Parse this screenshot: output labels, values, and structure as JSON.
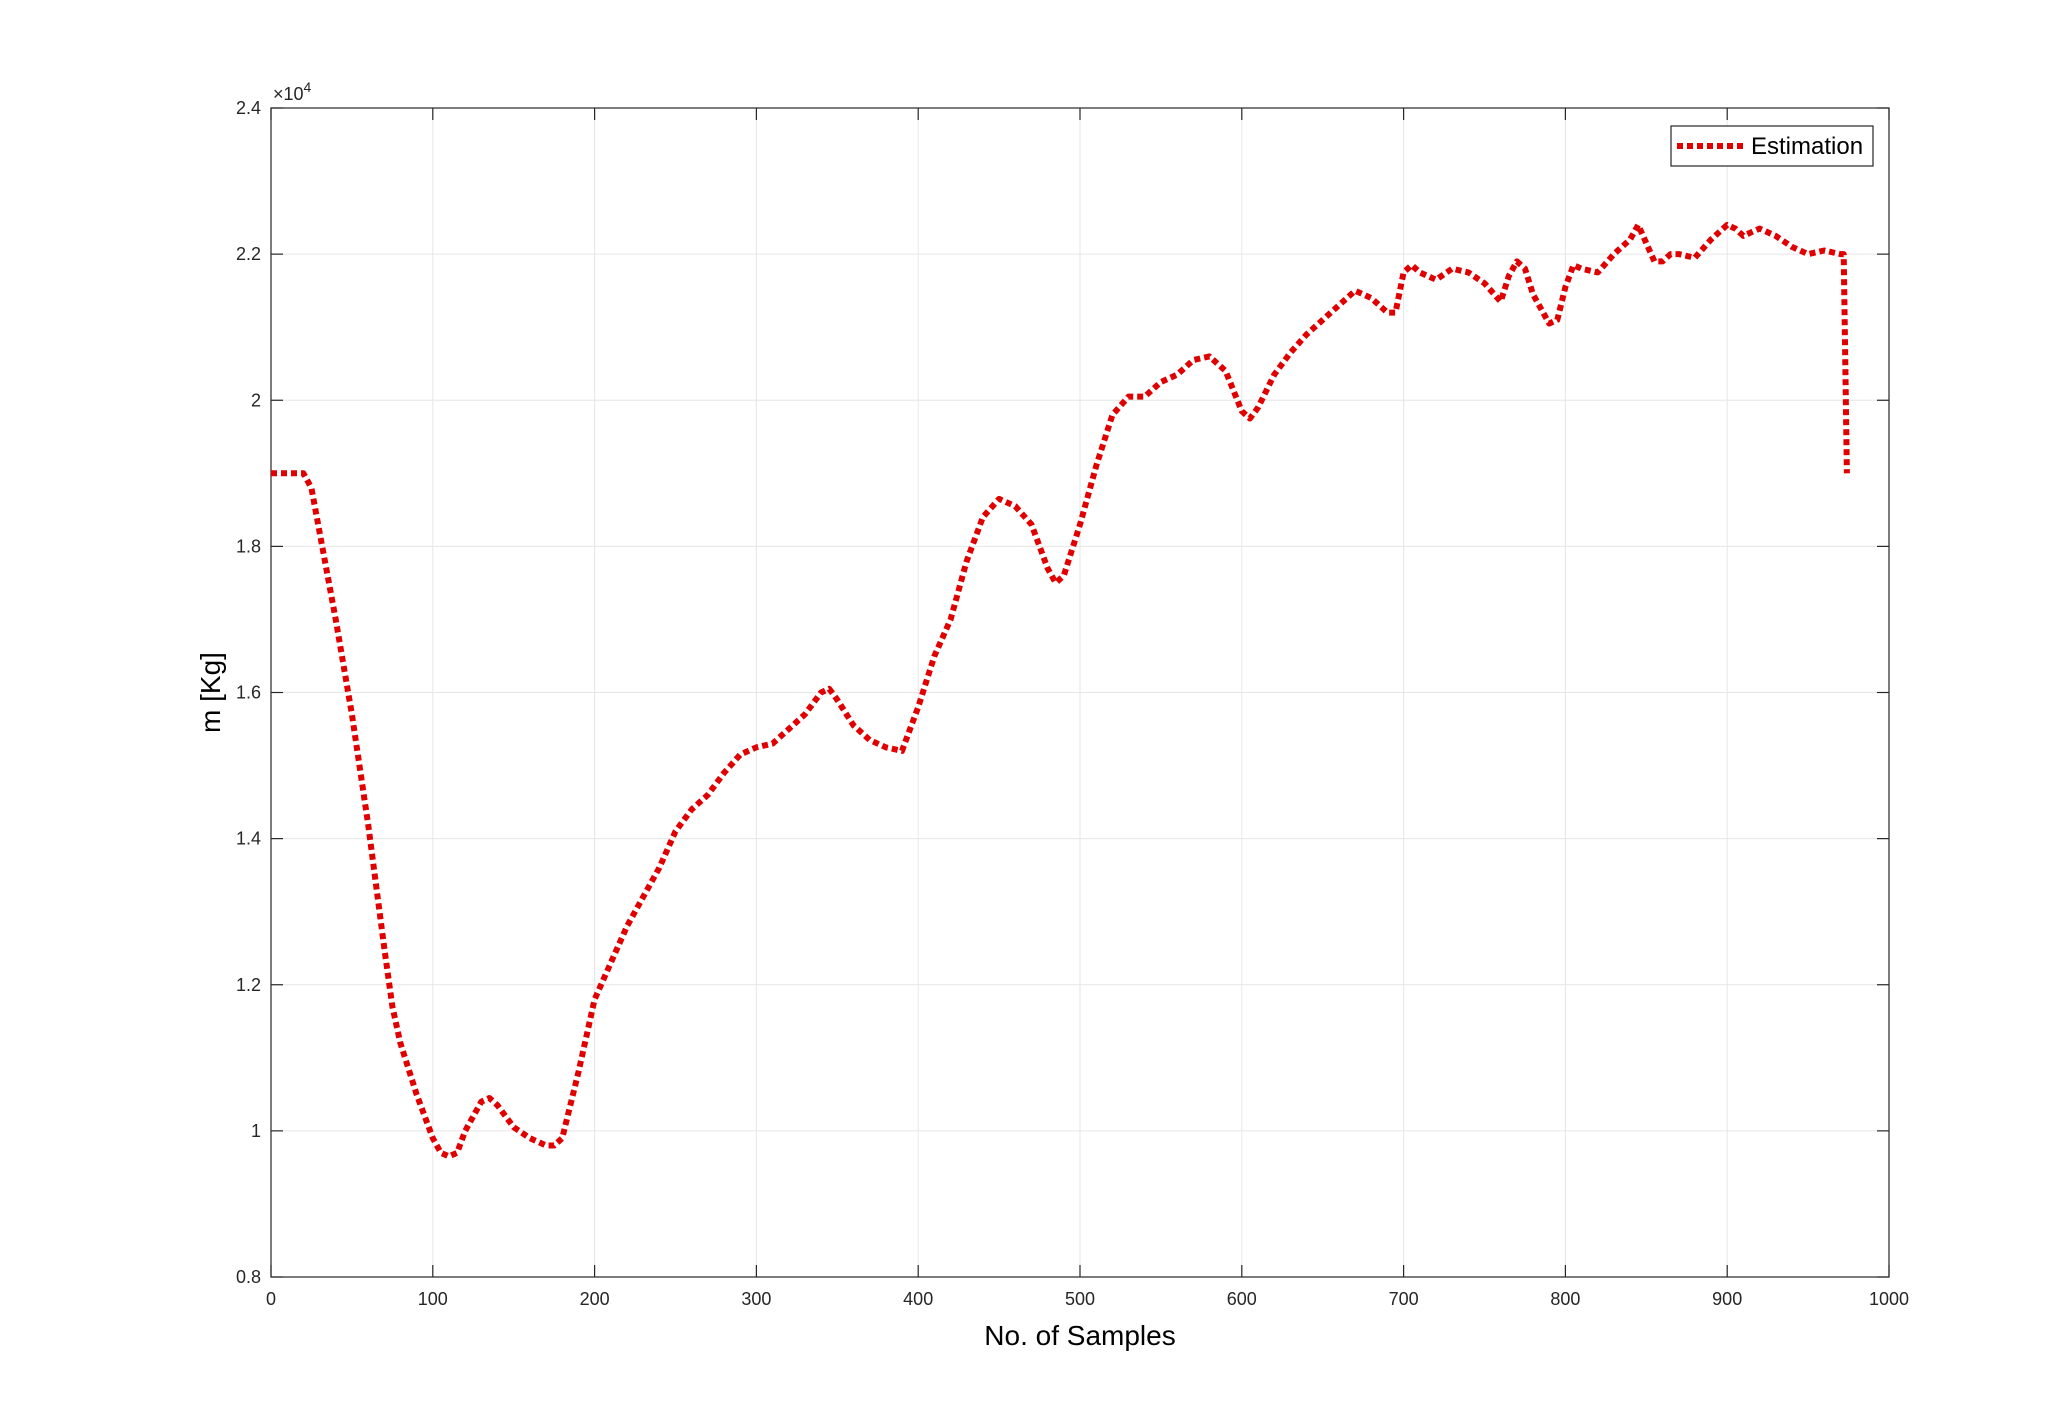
{
  "chart_data": {
    "type": "line",
    "title": "",
    "xlabel": "No. of Samples",
    "ylabel": "m [Kg]",
    "xlim": [
      0,
      1000
    ],
    "ylim": [
      0.8,
      2.4
    ],
    "y_multiplier_label": "×10",
    "y_multiplier_exponent": "4",
    "xticks": [
      "0",
      "100",
      "200",
      "300",
      "400",
      "500",
      "600",
      "700",
      "800",
      "900",
      "1000"
    ],
    "yticks": [
      "0.8",
      "1",
      "1.2",
      "1.4",
      "1.6",
      "1.8",
      "2",
      "2.2",
      "2.4"
    ],
    "grid": true,
    "legend_position": "top-right",
    "colors": {
      "series": "#e00000",
      "grid": "#e6e6e6",
      "axis": "#262626"
    },
    "series": [
      {
        "name": "Estimation",
        "x": [
          0,
          10,
          20,
          25,
          30,
          40,
          50,
          60,
          70,
          75,
          80,
          90,
          100,
          105,
          110,
          115,
          120,
          130,
          135,
          140,
          145,
          150,
          160,
          170,
          175,
          180,
          190,
          200,
          210,
          220,
          230,
          240,
          250,
          260,
          270,
          280,
          290,
          300,
          310,
          320,
          330,
          340,
          345,
          350,
          360,
          370,
          380,
          390,
          400,
          410,
          420,
          430,
          440,
          450,
          460,
          470,
          480,
          485,
          490,
          500,
          510,
          520,
          530,
          540,
          550,
          560,
          570,
          580,
          590,
          600,
          605,
          610,
          620,
          630,
          640,
          650,
          660,
          670,
          680,
          690,
          695,
          700,
          705,
          710,
          720,
          730,
          740,
          750,
          760,
          765,
          770,
          775,
          780,
          790,
          795,
          800,
          805,
          810,
          820,
          830,
          840,
          845,
          850,
          855,
          860,
          865,
          870,
          880,
          890,
          900,
          905,
          910,
          915,
          920,
          930,
          940,
          950,
          960,
          970,
          972,
          974
        ],
        "y": [
          1.9,
          1.9,
          1.9,
          1.88,
          1.82,
          1.7,
          1.57,
          1.42,
          1.25,
          1.17,
          1.12,
          1.05,
          0.99,
          0.97,
          0.965,
          0.97,
          1.0,
          1.04,
          1.045,
          1.035,
          1.02,
          1.005,
          0.99,
          0.98,
          0.98,
          0.99,
          1.08,
          1.18,
          1.23,
          1.28,
          1.32,
          1.36,
          1.41,
          1.44,
          1.46,
          1.49,
          1.515,
          1.525,
          1.53,
          1.55,
          1.57,
          1.6,
          1.605,
          1.59,
          1.555,
          1.535,
          1.525,
          1.52,
          1.58,
          1.65,
          1.7,
          1.78,
          1.84,
          1.865,
          1.855,
          1.83,
          1.77,
          1.75,
          1.76,
          1.83,
          1.91,
          1.98,
          2.005,
          2.005,
          2.025,
          2.035,
          2.055,
          2.06,
          2.04,
          1.985,
          1.975,
          1.99,
          2.035,
          2.065,
          2.09,
          2.11,
          2.13,
          2.15,
          2.14,
          2.12,
          2.12,
          2.175,
          2.185,
          2.175,
          2.165,
          2.18,
          2.175,
          2.16,
          2.135,
          2.17,
          2.19,
          2.18,
          2.145,
          2.105,
          2.11,
          2.155,
          2.185,
          2.18,
          2.175,
          2.2,
          2.22,
          2.24,
          2.215,
          2.19,
          2.19,
          2.2,
          2.2,
          2.195,
          2.22,
          2.24,
          2.235,
          2.225,
          2.23,
          2.235,
          2.225,
          2.21,
          2.2,
          2.205,
          2.2,
          2.2,
          1.9
        ]
      }
    ]
  }
}
